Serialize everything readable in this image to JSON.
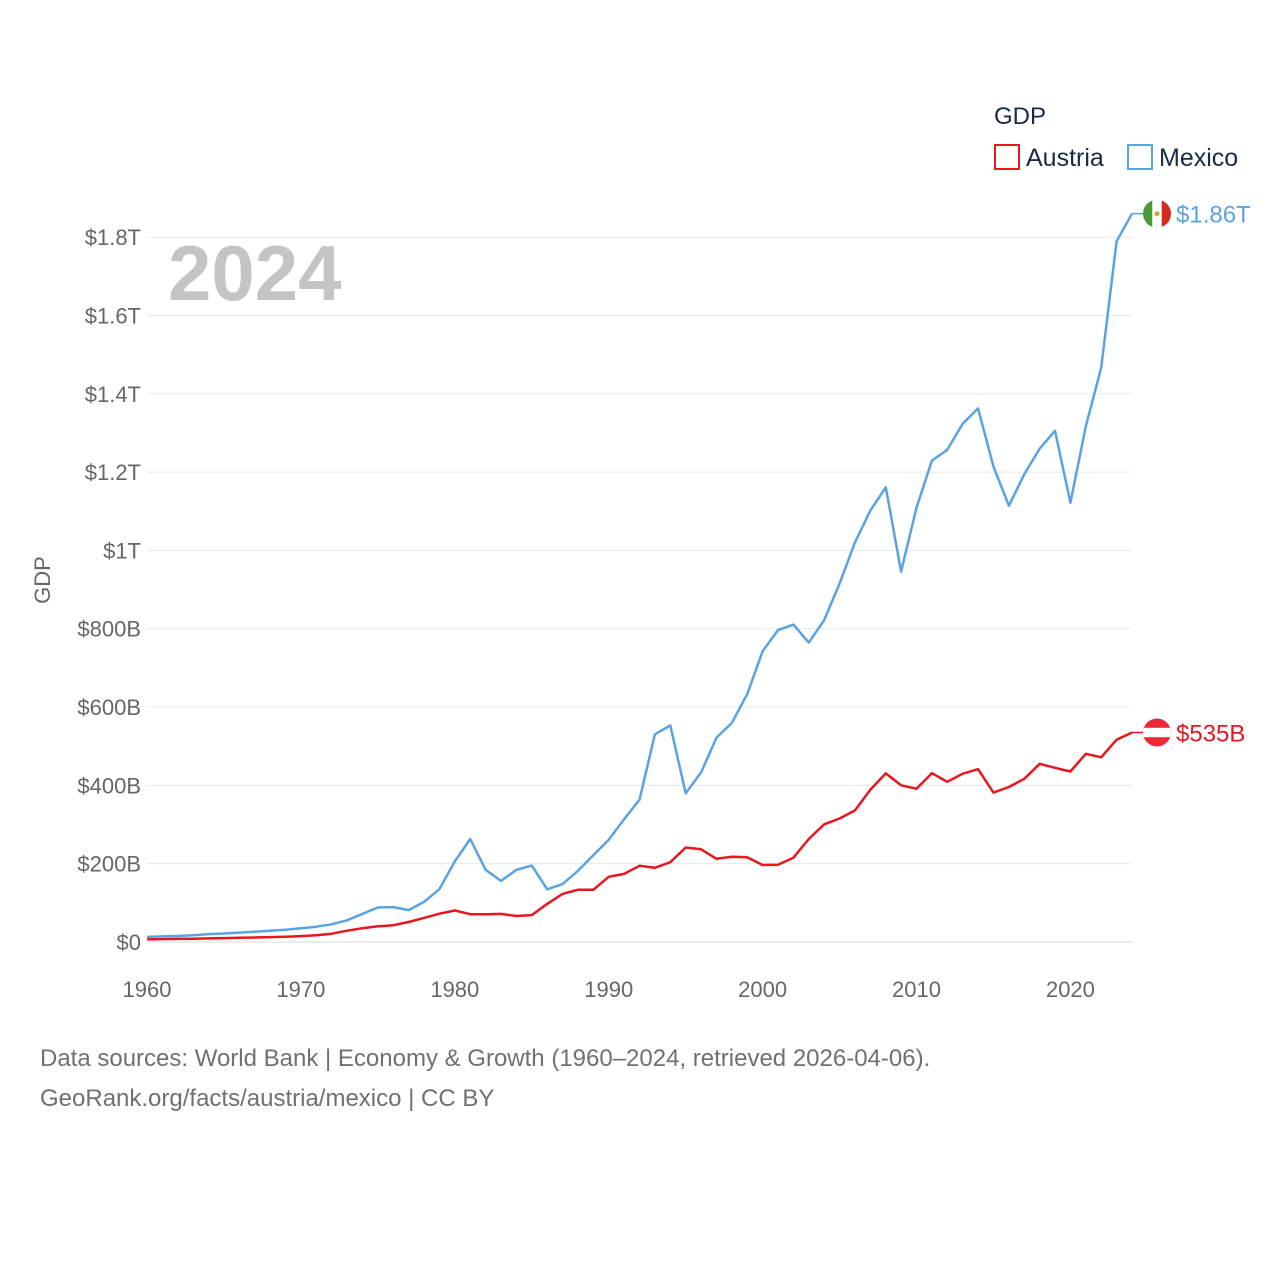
{
  "chart_data": {
    "type": "line",
    "year_label": "2024",
    "ylabel": "GDP",
    "legend": {
      "title": "GDP",
      "placement": "top-right"
    },
    "x": [
      1960,
      1961,
      1962,
      1963,
      1964,
      1965,
      1966,
      1967,
      1968,
      1969,
      1970,
      1971,
      1972,
      1973,
      1974,
      1975,
      1976,
      1977,
      1978,
      1979,
      1980,
      1981,
      1982,
      1983,
      1984,
      1985,
      1986,
      1987,
      1988,
      1989,
      1990,
      1991,
      1992,
      1993,
      1994,
      1995,
      1996,
      1997,
      1998,
      1999,
      2000,
      2001,
      2002,
      2003,
      2004,
      2005,
      2006,
      2007,
      2008,
      2009,
      2010,
      2011,
      2012,
      2013,
      2014,
      2015,
      2016,
      2017,
      2018,
      2019,
      2020,
      2021,
      2022,
      2023,
      2024
    ],
    "xlim": [
      1960,
      2024
    ],
    "ylim": [
      0,
      1.9
    ],
    "y_unit": "trillion USD",
    "x_ticks": [
      1960,
      1970,
      1980,
      1990,
      2000,
      2010,
      2020
    ],
    "x_tick_labels": [
      "1960",
      "1970",
      "1980",
      "1990",
      "2000",
      "2010",
      "2020"
    ],
    "y_ticks": [
      0,
      0.2,
      0.4,
      0.6,
      0.8,
      1.0,
      1.2,
      1.4,
      1.6,
      1.8
    ],
    "y_tick_labels": [
      "$0",
      "$200B",
      "$400B",
      "$600B",
      "$800B",
      "$1T",
      "$1.2T",
      "$1.4T",
      "$1.6T",
      "$1.8T"
    ],
    "grid": true,
    "series": [
      {
        "name": "Austria",
        "color": "#e8161f",
        "end_label": "$535B",
        "flag": "austria-flag",
        "values": [
          0.0066,
          0.0073,
          0.0078,
          0.0084,
          0.0092,
          0.0099,
          0.0108,
          0.0115,
          0.0124,
          0.0135,
          0.015,
          0.017,
          0.0211,
          0.0288,
          0.0352,
          0.04,
          0.0428,
          0.0511,
          0.0615,
          0.0723,
          0.0805,
          0.0711,
          0.0711,
          0.0718,
          0.0665,
          0.0688,
          0.0972,
          0.1229,
          0.1332,
          0.1332,
          0.1664,
          0.1738,
          0.1947,
          0.1896,
          0.2037,
          0.2414,
          0.2368,
          0.2126,
          0.2176,
          0.2163,
          0.1966,
          0.1972,
          0.2152,
          0.2631,
          0.3007,
          0.3155,
          0.3361,
          0.3893,
          0.4306,
          0.4001,
          0.3916,
          0.4311,
          0.4092,
          0.4299,
          0.4414,
          0.3816,
          0.3958,
          0.4167,
          0.4552,
          0.4448,
          0.4354,
          0.4805,
          0.4718,
          0.5166,
          0.535
        ]
      },
      {
        "name": "Mexico",
        "color": "#5aa3e3",
        "end_label": "$1.86T",
        "flag": "mexico-flag",
        "values": [
          0.013,
          0.0142,
          0.0153,
          0.017,
          0.0201,
          0.0218,
          0.024,
          0.0262,
          0.0288,
          0.0315,
          0.0352,
          0.0392,
          0.0451,
          0.0553,
          0.0721,
          0.0882,
          0.0891,
          0.0814,
          0.1025,
          0.1348,
          0.2058,
          0.263,
          0.1844,
          0.1561,
          0.1843,
          0.1952,
          0.1347,
          0.1478,
          0.1815,
          0.2215,
          0.2612,
          0.3134,
          0.3633,
          0.5304,
          0.5531,
          0.3797,
          0.4332,
          0.522,
          0.5593,
          0.6327,
          0.7423,
          0.7965,
          0.8105,
          0.7646,
          0.8221,
          0.9154,
          1.0207,
          1.1022,
          1.1612,
          0.9458,
          1.109,
          1.2293,
          1.257,
          1.3235,
          1.3626,
          1.2138,
          1.1141,
          1.1947,
          1.26,
          1.3054,
          1.1215,
          1.3167,
          1.4665,
          1.7894,
          1.86
        ]
      }
    ]
  },
  "footer": {
    "source_line": "Data sources: World Bank | Economy & Growth (1960–2024, retrieved 2026-04-06).",
    "credit_line": "GeoRank.org/facts/austria/mexico | CC BY"
  }
}
